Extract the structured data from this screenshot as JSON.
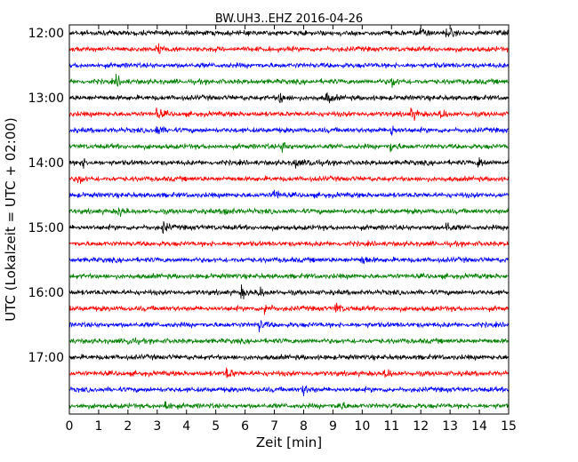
{
  "chart_data": {
    "type": "line",
    "title": "BW.UH3..EHZ 2016-04-26",
    "xlabel": "Zeit  [min]",
    "ylabel": "UTC (Lokalzeit = UTC + 02:00)",
    "xlim": [
      0,
      15
    ],
    "x_ticks": [
      "0",
      "1",
      "2",
      "3",
      "4",
      "5",
      "6",
      "7",
      "8",
      "9",
      "10",
      "11",
      "12",
      "13",
      "14",
      "15"
    ],
    "y_ticks": [
      "12:00",
      "13:00",
      "14:00",
      "15:00",
      "16:00",
      "17:00"
    ],
    "row_interval_min": 15,
    "start_time": "12:00",
    "series_colors": [
      "#000000",
      "#ff0000",
      "#0000ff",
      "#008000"
    ],
    "rows": [
      {
        "time": "12:00",
        "color": "#000000"
      },
      {
        "time": "12:15",
        "color": "#ff0000"
      },
      {
        "time": "12:30",
        "color": "#0000ff"
      },
      {
        "time": "12:45",
        "color": "#008000"
      },
      {
        "time": "13:00",
        "color": "#000000"
      },
      {
        "time": "13:15",
        "color": "#ff0000"
      },
      {
        "time": "13:30",
        "color": "#0000ff"
      },
      {
        "time": "13:45",
        "color": "#008000"
      },
      {
        "time": "14:00",
        "color": "#000000"
      },
      {
        "time": "14:15",
        "color": "#ff0000"
      },
      {
        "time": "14:30",
        "color": "#0000ff"
      },
      {
        "time": "14:45",
        "color": "#008000"
      },
      {
        "time": "15:00",
        "color": "#000000"
      },
      {
        "time": "15:15",
        "color": "#ff0000"
      },
      {
        "time": "15:30",
        "color": "#0000ff"
      },
      {
        "time": "15:45",
        "color": "#008000"
      },
      {
        "time": "16:00",
        "color": "#000000"
      },
      {
        "time": "16:15",
        "color": "#ff0000"
      },
      {
        "time": "16:30",
        "color": "#0000ff"
      },
      {
        "time": "16:45",
        "color": "#008000"
      },
      {
        "time": "17:00",
        "color": "#000000"
      },
      {
        "time": "17:15",
        "color": "#ff0000"
      },
      {
        "time": "17:30",
        "color": "#0000ff"
      },
      {
        "time": "17:45",
        "color": "#008000"
      }
    ],
    "events": [
      {
        "row": 1,
        "x": 3.0
      },
      {
        "row": 0,
        "x": 12.9
      },
      {
        "row": 0,
        "x": 12.0
      },
      {
        "row": 3,
        "x": 1.6
      },
      {
        "row": 3,
        "x": 11.0
      },
      {
        "row": 4,
        "x": 7.2
      },
      {
        "row": 4,
        "x": 8.8
      },
      {
        "row": 5,
        "x": 3.0
      },
      {
        "row": 5,
        "x": 12.7
      },
      {
        "row": 5,
        "x": 11.7
      },
      {
        "row": 6,
        "x": 3.0
      },
      {
        "row": 6,
        "x": 11.0
      },
      {
        "row": 7,
        "x": 7.3
      },
      {
        "row": 7,
        "x": 11.0
      },
      {
        "row": 8,
        "x": 0.4
      },
      {
        "row": 8,
        "x": 7.7
      },
      {
        "row": 8,
        "x": 8.2
      },
      {
        "row": 8,
        "x": 14.0
      },
      {
        "row": 9,
        "x": 0.3
      },
      {
        "row": 10,
        "x": 7.0
      },
      {
        "row": 11,
        "x": 1.7
      },
      {
        "row": 11,
        "x": 5.3
      },
      {
        "row": 12,
        "x": 3.2
      },
      {
        "row": 12,
        "x": 12.9
      },
      {
        "row": 14,
        "x": 10.0
      },
      {
        "row": 16,
        "x": 5.9
      },
      {
        "row": 16,
        "x": 6.5
      },
      {
        "row": 17,
        "x": 6.7
      },
      {
        "row": 17,
        "x": 9.1
      },
      {
        "row": 18,
        "x": 6.5
      },
      {
        "row": 19,
        "x": 2.0
      },
      {
        "row": 21,
        "x": 5.4
      },
      {
        "row": 21,
        "x": 10.8
      },
      {
        "row": 22,
        "x": 8.0
      },
      {
        "row": 23,
        "x": 3.3
      },
      {
        "row": 23,
        "x": 9.2
      }
    ]
  }
}
